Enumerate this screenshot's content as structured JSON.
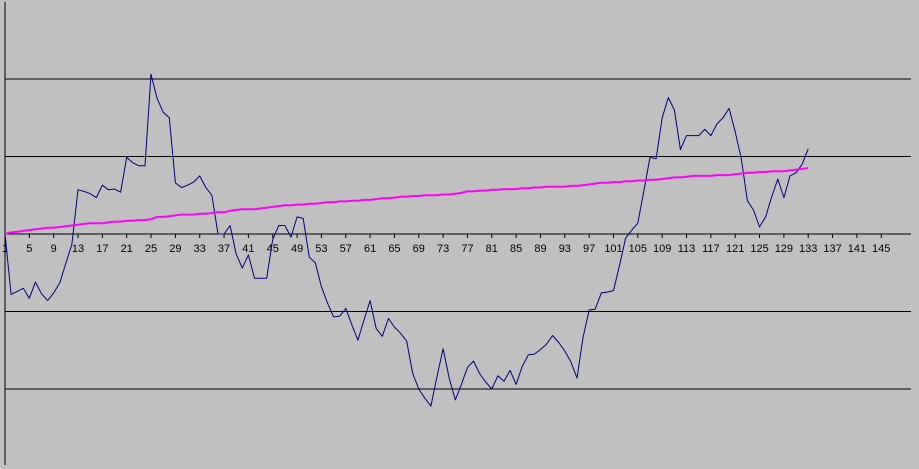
{
  "chart_data": {
    "type": "line",
    "title": "",
    "xlabel": "",
    "ylabel": "",
    "grid": true,
    "legend": "none",
    "colors": {
      "plot_background": "#c0c0c0",
      "gridline": "#000000",
      "axis": "#000000",
      "series_1": "#000080",
      "series_2": "#ff00ff"
    },
    "x_tick_labels": [
      "1",
      "5",
      "9",
      "13",
      "17",
      "21",
      "25",
      "29",
      "33",
      "37",
      "41",
      "45",
      "49",
      "53",
      "57",
      "61",
      "65",
      "69",
      "73",
      "77",
      "81",
      "85",
      "89",
      "93",
      "97",
      "101",
      "105",
      "109",
      "113",
      "117",
      "121",
      "125",
      "129",
      "133",
      "137",
      "141",
      "145"
    ],
    "x_range": [
      0,
      148
    ],
    "y_range": [
      -3,
      3
    ],
    "series": [
      {
        "type": "polyline",
        "values": [
          0.0,
          -0.78,
          -0.74,
          -0.7,
          -0.83,
          -0.62,
          -0.77,
          -0.86,
          -0.76,
          -0.63,
          -0.38,
          -0.13,
          0.57,
          0.55,
          0.52,
          0.47,
          0.63,
          0.57,
          0.58,
          0.54,
          0.99,
          0.92,
          0.88,
          0.88,
          2.06,
          1.75,
          1.57,
          1.5,
          0.66,
          0.6,
          0.63,
          0.67,
          0.75,
          0.6,
          0.5,
          0.0,
          0.0,
          0.11,
          -0.26,
          -0.44,
          -0.27,
          -0.57,
          -0.57,
          -0.57,
          -0.07,
          0.11,
          0.11,
          -0.04,
          0.22,
          0.2,
          -0.3,
          -0.37,
          -0.68,
          -0.89,
          -1.07,
          -1.06,
          -0.96,
          -1.17,
          -1.37,
          -1.11,
          -0.86,
          -1.22,
          -1.32,
          -1.09,
          -1.2,
          -1.28,
          -1.38,
          -1.8,
          -2.0,
          -2.12,
          -2.22,
          -1.84,
          -1.48,
          -1.86,
          -2.14,
          -1.94,
          -1.72,
          -1.64,
          -1.8,
          -1.91,
          -2.0,
          -1.83,
          -1.9,
          -1.76,
          -1.94,
          -1.71,
          -1.56,
          -1.55,
          -1.49,
          -1.42,
          -1.31,
          -1.4,
          -1.51,
          -1.65,
          -1.86,
          -1.33,
          -0.98,
          -0.97,
          -0.76,
          -0.75,
          -0.73,
          -0.4,
          -0.05,
          0.05,
          0.14,
          0.56,
          0.99,
          0.97,
          1.5,
          1.76,
          1.6,
          1.09,
          1.27,
          1.27,
          1.27,
          1.35,
          1.27,
          1.42,
          1.5,
          1.62,
          1.32,
          0.97,
          0.43,
          0.31,
          0.09,
          0.22,
          0.48,
          0.71,
          0.47,
          0.75,
          0.79,
          0.9,
          1.1
        ]
      },
      {
        "type": "polyline",
        "values": [
          0.0,
          0.02,
          0.03,
          0.04,
          0.05,
          0.06,
          0.07,
          0.08,
          0.08,
          0.09,
          0.1,
          0.11,
          0.12,
          0.13,
          0.14,
          0.14,
          0.14,
          0.15,
          0.16,
          0.16,
          0.17,
          0.17,
          0.18,
          0.18,
          0.19,
          0.22,
          0.22,
          0.23,
          0.24,
          0.25,
          0.25,
          0.25,
          0.26,
          0.26,
          0.27,
          0.28,
          0.28,
          0.3,
          0.31,
          0.32,
          0.32,
          0.32,
          0.33,
          0.34,
          0.35,
          0.36,
          0.37,
          0.37,
          0.38,
          0.38,
          0.39,
          0.39,
          0.4,
          0.41,
          0.41,
          0.42,
          0.42,
          0.43,
          0.43,
          0.44,
          0.44,
          0.45,
          0.46,
          0.46,
          0.47,
          0.48,
          0.48,
          0.49,
          0.49,
          0.5,
          0.5,
          0.5,
          0.51,
          0.51,
          0.52,
          0.53,
          0.55,
          0.55,
          0.56,
          0.56,
          0.57,
          0.57,
          0.58,
          0.58,
          0.58,
          0.59,
          0.59,
          0.6,
          0.6,
          0.61,
          0.61,
          0.61,
          0.61,
          0.62,
          0.62,
          0.63,
          0.64,
          0.65,
          0.66,
          0.66,
          0.67,
          0.67,
          0.68,
          0.68,
          0.69,
          0.69,
          0.7,
          0.7,
          0.71,
          0.72,
          0.73,
          0.73,
          0.74,
          0.75,
          0.75,
          0.75,
          0.75,
          0.76,
          0.76,
          0.76,
          0.77,
          0.78,
          0.79,
          0.79,
          0.8,
          0.8,
          0.81,
          0.81,
          0.81,
          0.82,
          0.83,
          0.84,
          0.85
        ]
      }
    ]
  }
}
